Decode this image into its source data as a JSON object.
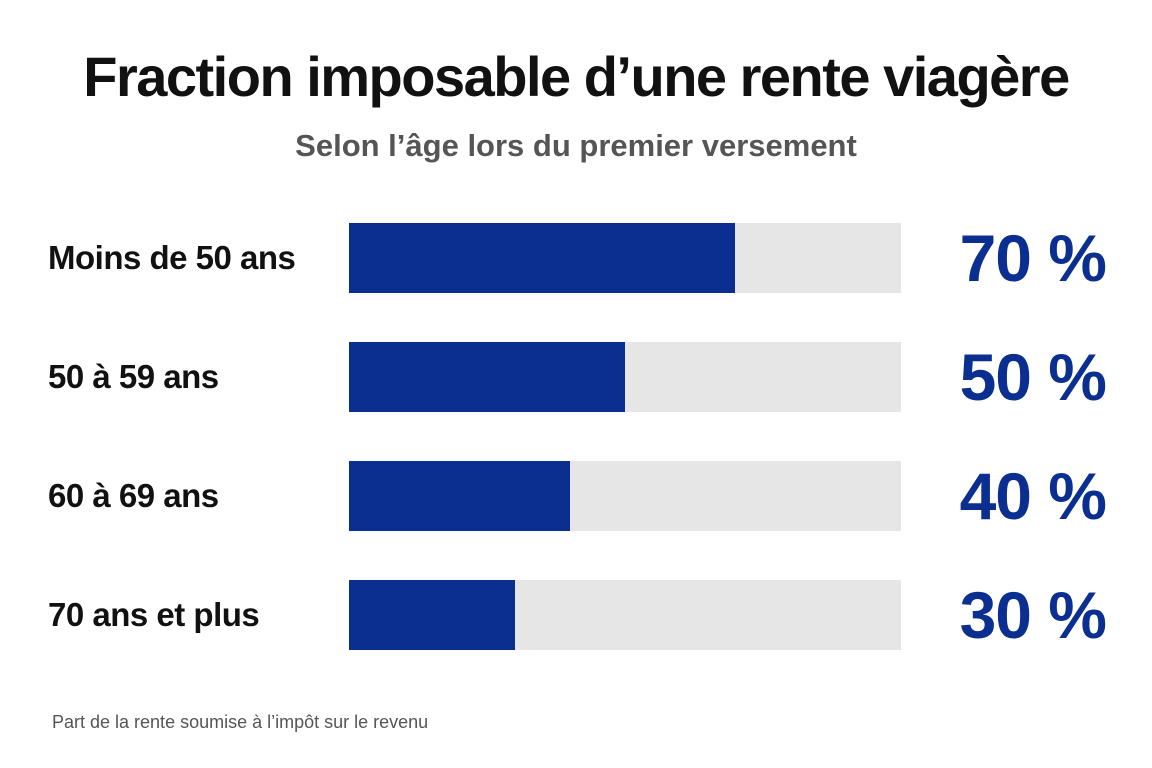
{
  "chart_data": {
    "type": "bar",
    "orientation": "horizontal",
    "title": "Fraction imposable d’une rente viagère",
    "subtitle": "Selon l’âge lors du premier versement",
    "categories": [
      "Moins de 50 ans",
      "50 à 59 ans",
      "60 à 69 ans",
      "70 ans et plus"
    ],
    "values": [
      70,
      50,
      40,
      30
    ],
    "value_labels": [
      "70 %",
      "50 %",
      "40 %",
      "30 %"
    ],
    "xlim": [
      0,
      100
    ],
    "unit": "%",
    "grid": false,
    "colors": {
      "bar": "#0b2f91",
      "track": "#e6e6e6",
      "value_text": "#0b2f91"
    },
    "footnote": "Part de la rente soumise à l’impôt sur le revenu"
  }
}
